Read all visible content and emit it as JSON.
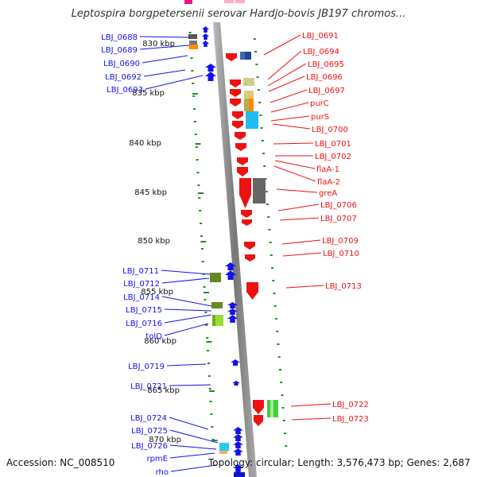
{
  "title": "Leptospira borgpetersenii serovar Hardjo-bovis JB197 chromos...",
  "footer": {
    "accession": "Accession: NC_008510",
    "topology": "Topology: circular; Length: 3,576,473 bp; Genes: 2,687"
  },
  "colors": {
    "forward_strand": "#1111ee",
    "reverse_strand": "#ee1111",
    "scale_dots": "#228b22",
    "backbone": "#888888"
  },
  "scale_labels": [
    "830 kbp",
    "835 kbp",
    "840 kbp",
    "845 kbp",
    "850 kbp",
    "855 kbp",
    "860 kbp",
    "865 kbp",
    "870 kbp"
  ],
  "left_labels": [
    "LBJ_0688",
    "LBJ_0689",
    "LBJ_0690",
    "LBJ_0692",
    "LBJ_0693",
    "LBJ_0711",
    "LBJ_0712",
    "LBJ_0714",
    "LBJ_0715",
    "LBJ_0716",
    "tolQ",
    "LBJ_0719",
    "LBJ_0721",
    "LBJ_0724",
    "LBJ_0725",
    "LBJ_0726",
    "rpmE",
    "rho"
  ],
  "right_labels": [
    "LBJ_0691",
    "LBJ_0694",
    "LBJ_0695",
    "LBJ_0696",
    "LBJ_0697",
    "purC",
    "purS",
    "LBJ_0700",
    "LBJ_0701",
    "LBJ_0702",
    "flaA-1",
    "flaA-2",
    "greA",
    "LBJ_0706",
    "LBJ_0707",
    "LBJ_0709",
    "LBJ_0710",
    "LBJ_0713",
    "LBJ_0722",
    "LBJ_0723"
  ]
}
